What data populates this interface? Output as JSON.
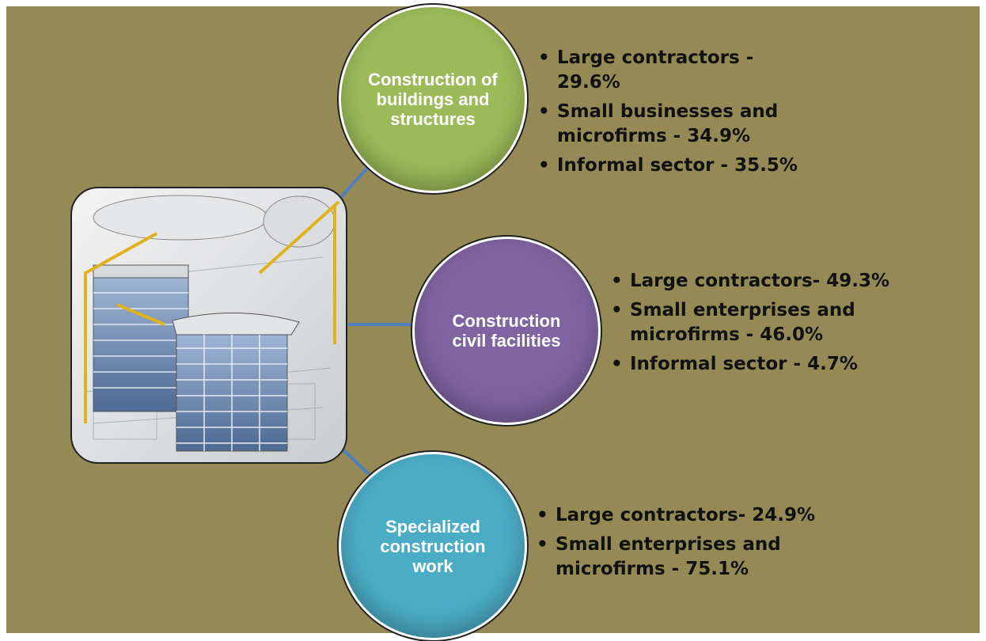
{
  "nodes": [
    {
      "label": "Construction of buildings and structures",
      "items": [
        "Large contractors - 29.6%",
        "Small businesses and microfirms - 34.9%",
        "Informal sector - 35.5%"
      ]
    },
    {
      "label": "Construction civil facilities",
      "items": [
        "Large contractors- 49.3%",
        "Small enterprises and microfirms - 46.0%",
        "Informal sector - 4.7%"
      ]
    },
    {
      "label": "Specialized construction work",
      "items": [
        "Large contractors- 24.9%",
        "Small enterprises and microfirms - 75.1%"
      ]
    }
  ]
}
